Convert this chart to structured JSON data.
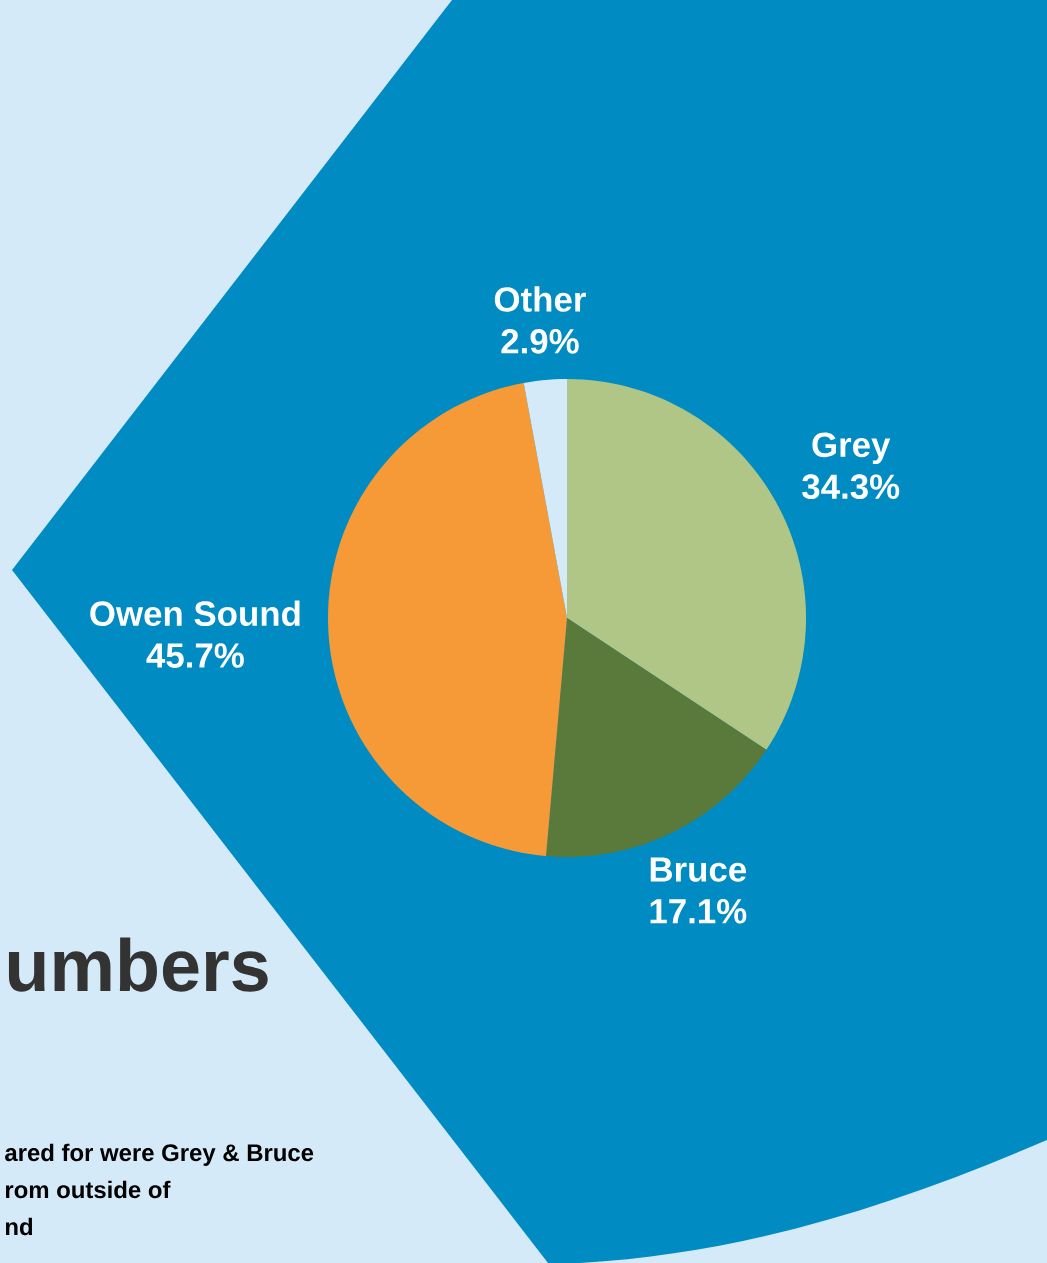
{
  "chart_data": {
    "type": "pie",
    "title": "umbers",
    "categories": [
      "Grey",
      "Bruce",
      "Owen Sound",
      "Other"
    ],
    "values": [
      34.3,
      17.1,
      45.7,
      2.9
    ],
    "value_labels": [
      "34.3%",
      "17.1%",
      "45.7%",
      "2.9%"
    ],
    "colors": [
      "#b0c686",
      "#5a7a3c",
      "#f59a36",
      "#d4eaf8"
    ],
    "annotations": [
      "ared for were Grey & Bruce",
      "rom outside of",
      "nd"
    ]
  }
}
